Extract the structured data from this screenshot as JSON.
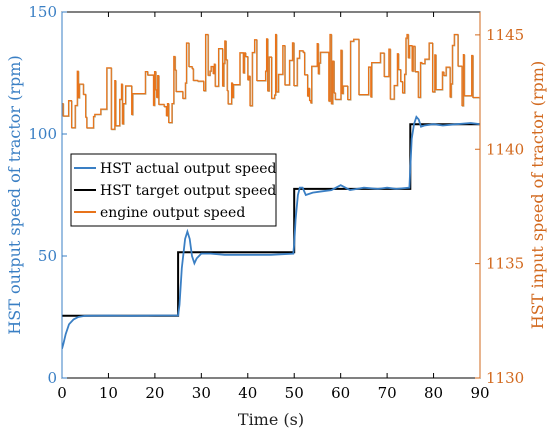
{
  "chart_data": {
    "type": "line",
    "xlabel": "Time (s)",
    "ylabel_left": "HST output speed of tractor (rpm)",
    "ylabel_right": "HST input speed of tractor (rpm)",
    "xlim": [
      0,
      90
    ],
    "ylim_left": [
      0,
      150
    ],
    "ylim_right": [
      1130,
      1146
    ],
    "x_ticks": [
      0,
      10,
      20,
      30,
      40,
      50,
      60,
      70,
      80,
      90
    ],
    "y_left_ticks": [
      0,
      50,
      100,
      150
    ],
    "y_right_ticks": [
      1130,
      1135,
      1140,
      1145
    ],
    "grid": false,
    "legend_position": "center-left",
    "colors": {
      "left_axis": "#3a7fc4",
      "right_axis": "#d2691e",
      "actual": "#3a7fc4",
      "target": "#000000",
      "engine": "#e8731a",
      "engine_dark": "#7a5a10"
    },
    "series": [
      {
        "name": "HST actual output speed",
        "axis": "left",
        "x": [
          0,
          0.3,
          0.8,
          1.5,
          2.5,
          3.5,
          5,
          10,
          15,
          20,
          25,
          25.3,
          25.8,
          26.5,
          27,
          27.5,
          28,
          28.5,
          29,
          30,
          32,
          35,
          40,
          45,
          49.8,
          50,
          50.3,
          50.8,
          51.2,
          51.8,
          52.5,
          54,
          56,
          58,
          60,
          62,
          65,
          68,
          70,
          72,
          74.8,
          75,
          75.3,
          75.8,
          76.3,
          76.8,
          77.3,
          78,
          80,
          82,
          85,
          88,
          90
        ],
        "values": [
          12,
          14,
          18,
          22,
          24,
          25,
          25.5,
          25.6,
          25.5,
          25.6,
          25.6,
          30,
          45,
          57,
          60,
          57,
          50,
          47,
          49,
          51,
          51,
          50.5,
          50.5,
          50.5,
          51,
          55,
          65,
          75,
          78,
          78,
          75,
          76,
          76.5,
          77,
          79,
          77,
          78,
          77.5,
          78,
          77.5,
          78,
          86,
          98,
          104,
          107,
          106,
          103,
          103.5,
          104,
          103.5,
          104,
          104.5,
          104
        ]
      },
      {
        "name": "HST target output speed",
        "axis": "left",
        "x": [
          0,
          25,
          25,
          50,
          50,
          75,
          75,
          90
        ],
        "values": [
          25.5,
          25.5,
          51.5,
          51.5,
          77.5,
          77.5,
          104,
          104
        ]
      },
      {
        "name": "engine output speed",
        "axis": "right",
        "x_start": 0,
        "x_end": 90,
        "noisy": true,
        "segments": [
          {
            "x": [
              0,
              12
            ],
            "mean": 1142,
            "amp": 1.2
          },
          {
            "x": [
              12,
              24
            ],
            "mean": 1142.1,
            "amp": 1.0
          },
          {
            "x": [
              24,
              90
            ],
            "mean": 1143.2,
            "amp": 1.4
          }
        ]
      }
    ]
  }
}
